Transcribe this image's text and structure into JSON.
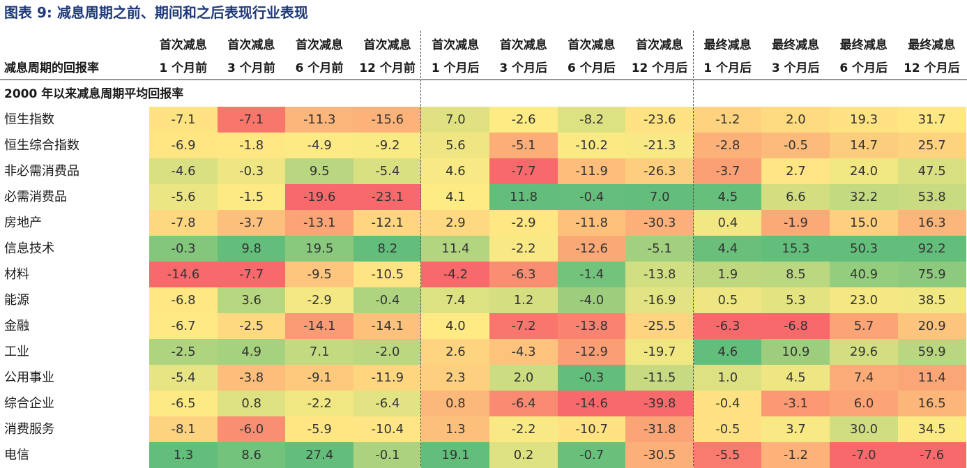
{
  "title": "图表 9: 减息周期之前、期间和之后表现行业表现",
  "row_header_label": "减息周期的回报率",
  "section_label": "2000 年以来减息周期平均回报率",
  "columns": [
    {
      "line1": "首次减息",
      "line2": "1 个月前"
    },
    {
      "line1": "首次减息",
      "line2": "3 个月前"
    },
    {
      "line1": "首次减息",
      "line2": "6 个月前"
    },
    {
      "line1": "首次减息",
      "line2": "12 个月前"
    },
    {
      "line1": "首次减息",
      "line2": "1 个月后"
    },
    {
      "line1": "首次减息",
      "line2": "3 个月后"
    },
    {
      "line1": "首次减息",
      "line2": "6 个月后"
    },
    {
      "line1": "首次减息",
      "line2": "12 个月后"
    },
    {
      "line1": "最终减息",
      "line2": "1 个月后"
    },
    {
      "line1": "最终减息",
      "line2": "3 个月后"
    },
    {
      "line1": "最终减息",
      "line2": "6 个月后"
    },
    {
      "line1": "最终减息",
      "line2": "12 个月后"
    }
  ],
  "rows": [
    {
      "label": "恒生指数",
      "values": [
        "-7.1",
        "-7.1",
        "-11.3",
        "-15.6",
        "7.0",
        "-2.6",
        "-8.2",
        "-23.6",
        "-1.2",
        "2.0",
        "19.3",
        "31.7"
      ]
    },
    {
      "label": "恒生综合指数",
      "values": [
        "-6.9",
        "-1.8",
        "-4.9",
        "-9.2",
        "5.6",
        "-5.1",
        "-10.2",
        "-21.3",
        "-2.8",
        "-0.5",
        "14.7",
        "25.7"
      ]
    },
    {
      "label": "非必需消费品",
      "values": [
        "-4.6",
        "-0.3",
        "9.5",
        "-5.4",
        "4.6",
        "-7.7",
        "-11.9",
        "-26.3",
        "-3.7",
        "2.7",
        "24.0",
        "47.5"
      ]
    },
    {
      "label": "必需消费品",
      "values": [
        "-5.6",
        "-1.5",
        "-19.6",
        "-23.1",
        "4.1",
        "11.8",
        "-0.4",
        "7.0",
        "4.5",
        "6.6",
        "32.2",
        "53.8"
      ]
    },
    {
      "label": "房地产",
      "values": [
        "-7.8",
        "-3.7",
        "-13.1",
        "-12.1",
        "2.9",
        "-2.9",
        "-11.8",
        "-30.3",
        "0.4",
        "-1.9",
        "15.0",
        "16.3"
      ]
    },
    {
      "label": "信息技术",
      "values": [
        "-0.3",
        "9.8",
        "19.5",
        "8.2",
        "11.4",
        "-2.2",
        "-12.6",
        "-5.1",
        "4.4",
        "15.3",
        "50.3",
        "92.2"
      ]
    },
    {
      "label": "材料",
      "values": [
        "-14.6",
        "-7.7",
        "-9.5",
        "-10.5",
        "-4.2",
        "-6.3",
        "-1.4",
        "-13.8",
        "1.9",
        "8.5",
        "40.9",
        "75.9"
      ]
    },
    {
      "label": "能源",
      "values": [
        "-6.8",
        "3.6",
        "-2.9",
        "-0.4",
        "7.4",
        "1.2",
        "-4.0",
        "-16.9",
        "0.5",
        "5.3",
        "23.0",
        "38.5"
      ]
    },
    {
      "label": "金融",
      "values": [
        "-6.7",
        "-2.5",
        "-14.1",
        "-14.1",
        "4.0",
        "-7.2",
        "-13.8",
        "-25.5",
        "-6.3",
        "-6.8",
        "5.7",
        "20.9"
      ]
    },
    {
      "label": "工业",
      "values": [
        "-2.5",
        "4.9",
        "7.1",
        "-2.0",
        "2.6",
        "-4.3",
        "-12.9",
        "-19.7",
        "4.6",
        "10.9",
        "29.6",
        "59.9"
      ]
    },
    {
      "label": "公用事业",
      "values": [
        "-5.4",
        "-3.8",
        "-9.1",
        "-11.9",
        "2.3",
        "2.0",
        "-0.3",
        "-11.5",
        "1.0",
        "4.5",
        "7.4",
        "11.4"
      ]
    },
    {
      "label": "综合企业",
      "values": [
        "-6.5",
        "0.8",
        "-2.2",
        "-6.4",
        "0.8",
        "-6.4",
        "-14.6",
        "-39.8",
        "-0.4",
        "-3.1",
        "6.0",
        "16.5"
      ]
    },
    {
      "label": "消费服务",
      "values": [
        "-8.1",
        "-6.0",
        "-5.9",
        "-10.4",
        "1.3",
        "-2.2",
        "-10.7",
        "-31.8",
        "-0.5",
        "3.7",
        "30.0",
        "34.5"
      ]
    },
    {
      "label": "电信",
      "values": [
        "1.3",
        "8.6",
        "27.4",
        "-0.1",
        "19.1",
        "0.2",
        "-0.7",
        "-30.5",
        "-5.5",
        "-1.2",
        "-7.0",
        "-7.6"
      ]
    }
  ],
  "heatmap_colors": {
    "low": "#f8696b",
    "mid": "#ffeb84",
    "high": "#63be7b"
  }
}
